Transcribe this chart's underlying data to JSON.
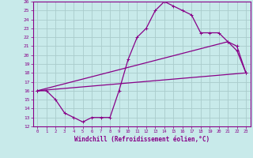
{
  "xlabel": "Windchill (Refroidissement éolien,°C)",
  "bg_color": "#c8eaea",
  "line_color": "#880088",
  "grid_color": "#aacccc",
  "xlim": [
    -0.5,
    23.5
  ],
  "ylim": [
    12,
    26
  ],
  "xticks": [
    0,
    1,
    2,
    3,
    4,
    5,
    6,
    7,
    8,
    9,
    10,
    11,
    12,
    13,
    14,
    15,
    16,
    17,
    18,
    19,
    20,
    21,
    22,
    23
  ],
  "yticks": [
    12,
    13,
    14,
    15,
    16,
    17,
    18,
    19,
    20,
    21,
    22,
    23,
    24,
    25,
    26
  ],
  "line1_x": [
    0,
    1,
    2,
    3,
    4,
    5,
    6,
    7,
    8,
    9,
    10,
    11,
    12,
    13,
    14,
    15,
    16,
    17,
    18,
    19,
    20,
    21,
    22,
    23
  ],
  "line1_y": [
    16,
    16,
    15,
    13.5,
    13,
    12.5,
    13,
    13,
    13,
    16,
    19.5,
    22,
    23,
    25,
    26,
    25.5,
    25,
    24.5,
    22.5,
    22.5,
    22.5,
    21.5,
    20.5,
    18
  ],
  "line2_x": [
    0,
    21,
    22,
    23
  ],
  "line2_y": [
    16,
    21.5,
    21,
    18
  ],
  "line3_x": [
    0,
    23
  ],
  "line3_y": [
    16,
    18
  ],
  "marker": "+"
}
